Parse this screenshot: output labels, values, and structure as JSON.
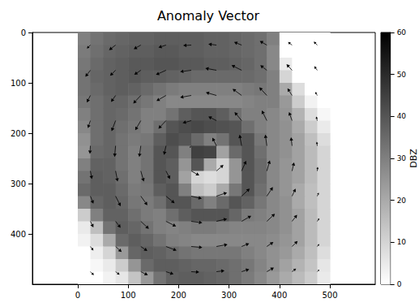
{
  "chart_data": {
    "type": "heatmap",
    "title": "Anomaly Vector",
    "xlim": [
      -90,
      590
    ],
    "xticks": [
      0,
      100,
      200,
      300,
      400,
      500
    ],
    "ylim": [
      500,
      0
    ],
    "yticks": [
      0,
      100,
      200,
      300,
      400
    ],
    "grid": false,
    "color": "#000000",
    "cells": {
      "x": [
        12.5,
        37.5,
        62.5,
        87.5,
        112.5,
        137.5,
        162.5,
        187.5,
        212.5,
        237.5,
        262.5,
        287.5,
        312.5,
        337.5,
        362.5,
        387.5,
        412.5,
        437.5,
        462.5,
        487.5
      ],
      "y": [
        12.5,
        37.5,
        62.5,
        87.5,
        112.5,
        137.5,
        162.5,
        187.5,
        212.5,
        237.5,
        262.5,
        287.5,
        312.5,
        337.5,
        362.5,
        387.5,
        412.5,
        437.5,
        462.5,
        487.5
      ],
      "values": [
        [
          30,
          33,
          35,
          36,
          37,
          37,
          38,
          38,
          38,
          38,
          37,
          37,
          36,
          35,
          34,
          30,
          0,
          0,
          0,
          0
        ],
        [
          31,
          34,
          36,
          37,
          38,
          38,
          39,
          39,
          38,
          38,
          37,
          37,
          36,
          35,
          34,
          28,
          0,
          0,
          0,
          0
        ],
        [
          32,
          35,
          37,
          38,
          39,
          39,
          40,
          40,
          39,
          39,
          38,
          38,
          37,
          36,
          34,
          28,
          5,
          0,
          0,
          0
        ],
        [
          33,
          36,
          37,
          38,
          39,
          38,
          38,
          37,
          36,
          35,
          35,
          35,
          35,
          35,
          34,
          30,
          10,
          0,
          0,
          0
        ],
        [
          33,
          35,
          37,
          38,
          37,
          35,
          33,
          31,
          30,
          30,
          30,
          30,
          30,
          31,
          32,
          30,
          20,
          8,
          0,
          0
        ],
        [
          32,
          34,
          36,
          36,
          34,
          32,
          30,
          28,
          28,
          28,
          28,
          28,
          28,
          29,
          30,
          30,
          24,
          12,
          3,
          0
        ],
        [
          30,
          34,
          36,
          35,
          33,
          30,
          30,
          33,
          38,
          40,
          40,
          38,
          34,
          30,
          30,
          28,
          25,
          18,
          8,
          2
        ],
        [
          28,
          34,
          36,
          34,
          32,
          30,
          34,
          40,
          42,
          43,
          42,
          41,
          40,
          34,
          30,
          28,
          26,
          20,
          12,
          5
        ],
        [
          26,
          34,
          36,
          33,
          31,
          32,
          38,
          42,
          40,
          35,
          30,
          33,
          40,
          40,
          32,
          28,
          26,
          22,
          15,
          8
        ],
        [
          25,
          35,
          36,
          33,
          30,
          33,
          40,
          40,
          30,
          45,
          44,
          22,
          35,
          40,
          34,
          28,
          26,
          22,
          16,
          10
        ],
        [
          30,
          37,
          37,
          33,
          30,
          33,
          40,
          38,
          25,
          40,
          20,
          10,
          25,
          40,
          35,
          28,
          25,
          22,
          16,
          10
        ],
        [
          33,
          38,
          37,
          34,
          30,
          33,
          40,
          38,
          22,
          10,
          8,
          10,
          25,
          40,
          35,
          28,
          25,
          22,
          16,
          10
        ],
        [
          35,
          38,
          38,
          35,
          31,
          32,
          38,
          40,
          30,
          15,
          12,
          20,
          32,
          40,
          34,
          28,
          25,
          20,
          15,
          10
        ],
        [
          28,
          36,
          38,
          36,
          32,
          31,
          34,
          40,
          40,
          35,
          30,
          35,
          40,
          37,
          32,
          28,
          26,
          20,
          15,
          10
        ],
        [
          12,
          30,
          37,
          37,
          34,
          31,
          30,
          34,
          38,
          40,
          40,
          40,
          36,
          31,
          30,
          28,
          26,
          22,
          16,
          10
        ],
        [
          5,
          15,
          33,
          38,
          36,
          33,
          30,
          29,
          30,
          31,
          31,
          30,
          29,
          29,
          29,
          28,
          26,
          22,
          16,
          10
        ],
        [
          3,
          8,
          20,
          35,
          38,
          36,
          33,
          30,
          29,
          28,
          28,
          28,
          28,
          28,
          28,
          27,
          25,
          22,
          16,
          10
        ],
        [
          0,
          4,
          10,
          24,
          36,
          38,
          37,
          35,
          33,
          32,
          32,
          32,
          32,
          30,
          28,
          26,
          24,
          20,
          15,
          8
        ],
        [
          0,
          2,
          5,
          12,
          25,
          35,
          38,
          38,
          37,
          36,
          36,
          35,
          34,
          32,
          29,
          26,
          22,
          18,
          14,
          6
        ],
        [
          0,
          0,
          3,
          6,
          14,
          24,
          33,
          37,
          38,
          38,
          37,
          36,
          34,
          31,
          28,
          24,
          20,
          16,
          12,
          5
        ]
      ]
    },
    "colorbar": {
      "label": "DBZ",
      "range": [
        0,
        60
      ],
      "ticks": [
        0,
        10,
        20,
        30,
        40,
        50,
        60
      ],
      "colors": [
        "#ffffff",
        "#000000"
      ]
    },
    "vectors": {
      "x": [
        25,
        75,
        125,
        175,
        225,
        275,
        325,
        375,
        425,
        475
      ],
      "y": [
        25,
        75,
        125,
        175,
        225,
        275,
        325,
        375,
        425,
        475
      ],
      "u": [
        [
          -7,
          -13,
          -14,
          -15,
          -16,
          -16,
          -15,
          -14,
          -8,
          -7
        ],
        [
          -10,
          -11,
          -13,
          -20,
          -22,
          -22,
          -20,
          -13,
          -11,
          -6
        ],
        [
          -7,
          -9,
          -15,
          -19,
          -22,
          -21,
          -18,
          -15,
          -9,
          -4
        ],
        [
          -5,
          -8,
          -11,
          -15,
          -17,
          -16,
          -14,
          -10,
          -6,
          -2
        ],
        [
          -1,
          -2,
          -3,
          -4,
          -3,
          -8,
          -4,
          -3,
          -2,
          -1
        ],
        [
          3,
          4,
          6,
          8,
          16,
          14,
          9,
          6,
          4,
          1
        ],
        [
          6,
          10,
          13,
          17,
          21,
          21,
          16,
          12,
          7,
          3
        ],
        [
          6,
          10,
          16,
          20,
          22,
          21,
          19,
          16,
          10,
          4
        ],
        [
          6,
          12,
          13,
          21,
          22,
          22,
          15,
          13,
          11,
          4
        ],
        [
          7,
          8,
          14,
          15,
          16,
          16,
          15,
          14,
          8,
          4
        ]
      ],
      "v": [
        [
          7,
          10,
          8,
          5,
          1,
          -2,
          -6,
          -8,
          -6,
          -7
        ],
        [
          13,
          11,
          9,
          9,
          3,
          -4,
          -10,
          -10,
          -12,
          -8
        ],
        [
          14,
          13,
          16,
          11,
          4,
          -6,
          -13,
          -16,
          -14,
          -7
        ],
        [
          15,
          21,
          19,
          16,
          5,
          -8,
          -17,
          -20,
          -17,
          -8
        ],
        [
          16,
          22,
          22,
          18,
          4,
          -16,
          -22,
          -22,
          -17,
          -8
        ],
        [
          16,
          21,
          21,
          16,
          9,
          -12,
          -20,
          -21,
          -17,
          -8
        ],
        [
          15,
          20,
          18,
          14,
          5,
          -7,
          -15,
          -18,
          -15,
          -7
        ],
        [
          12,
          13,
          15,
          10,
          3,
          -5,
          -11,
          -15,
          -13,
          -6
        ],
        [
          8,
          11,
          9,
          8,
          2,
          -4,
          -6,
          -9,
          -11,
          -5
        ],
        [
          7,
          6,
          7,
          5,
          1,
          -2,
          -5,
          -8,
          -6,
          -4
        ]
      ]
    }
  }
}
